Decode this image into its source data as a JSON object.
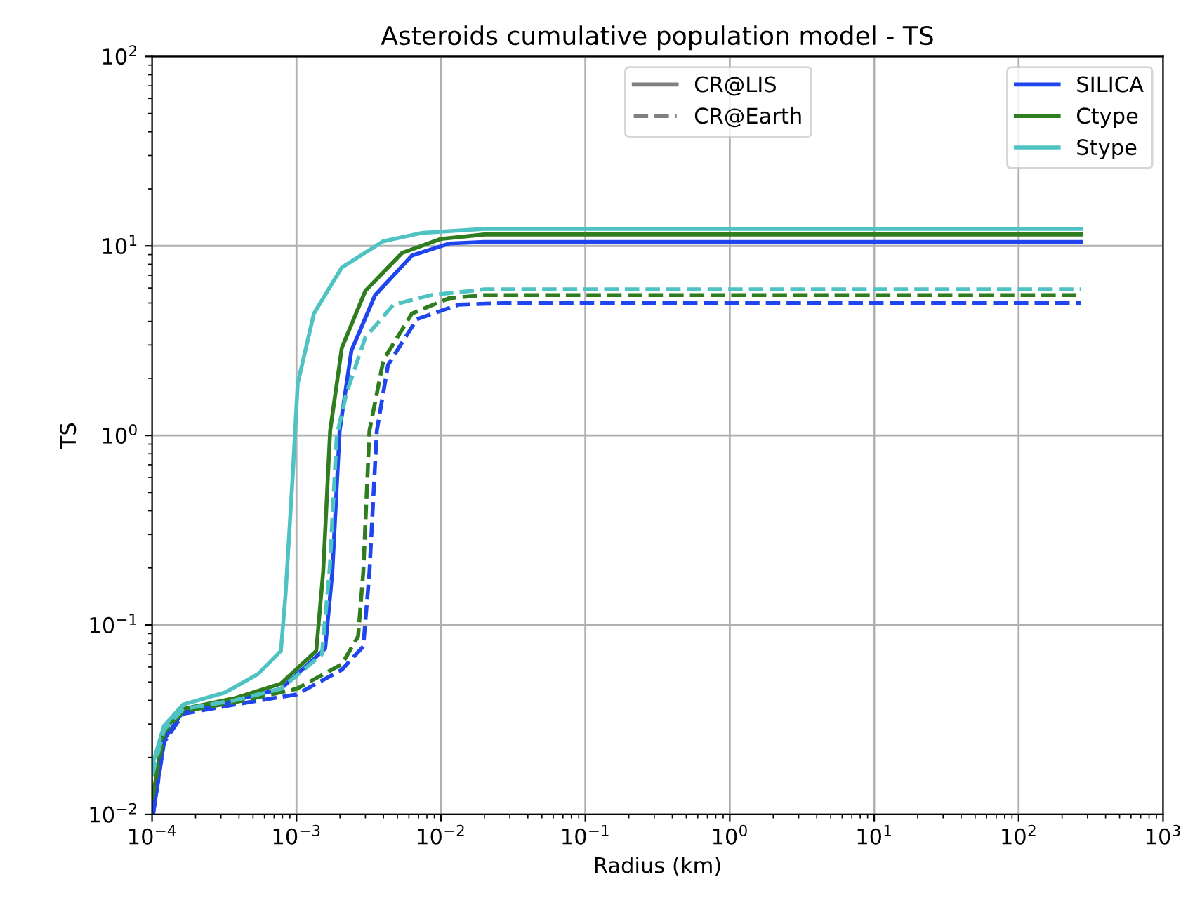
{
  "chart_data": {
    "type": "line",
    "title": "Asteroids cumulative population model - TS",
    "xlabel": "Radius (km)",
    "ylabel": "TS",
    "log": "xy",
    "grid": true,
    "legend": "top right",
    "marker": "none",
    "xlim": [
      0.0001,
      1000
    ],
    "ylim": [
      0.01,
      100
    ],
    "xticks": [
      {
        "value": 0.0001,
        "label": "10$^{−4}$"
      },
      {
        "value": 0.001,
        "label": "10$^{−3}$"
      },
      {
        "value": 0.01,
        "label": "10$^{−2}$"
      },
      {
        "value": 0.1,
        "label": "10$^{−1}$"
      },
      {
        "value": 1,
        "label": "10$^{0}$"
      },
      {
        "value": 10,
        "label": "10$^{1}$"
      },
      {
        "value": 100,
        "label": "10$^{2}$"
      },
      {
        "value": 1000,
        "label": "10$^{3}$"
      }
    ],
    "yticks": [
      {
        "value": 0.01,
        "label": "10$^{−2}$"
      },
      {
        "value": 0.1,
        "label": "10$^{−1}$"
      },
      {
        "value": 1,
        "label": "10$^{0}$"
      },
      {
        "value": 10,
        "label": "10$^{1}$"
      },
      {
        "value": 100,
        "label": "10$^{2}$"
      }
    ],
    "series": [
      {
        "name": "CR@LIS",
        "color": "#808080",
        "line_style": "solid"
      },
      {
        "name": "CR@Earth",
        "color": "#808080",
        "line_style": "dashed"
      },
      {
        "name": "SILICA",
        "color": "#1f45ee",
        "line_style": "solid",
        "x": [
          0.000102,
          0.000121,
          0.000164,
          0.00037,
          0.00078,
          0.00158,
          0.00177,
          0.00199,
          0.0024,
          0.0035,
          0.0063,
          0.0114,
          0.02,
          270
        ],
        "values": [
          0.0102,
          0.0248,
          0.035,
          0.04,
          0.046,
          0.075,
          0.19,
          1.06,
          2.8,
          5.5,
          8.9,
          10.3,
          10.5,
          10.5
        ]
      },
      {
        "name": "Ctype",
        "color": "#2f7d1e",
        "line_style": "solid",
        "x": [
          0.0001,
          0.000121,
          0.000164,
          0.00037,
          0.00078,
          0.00137,
          0.00153,
          0.00171,
          0.00206,
          0.003,
          0.0054,
          0.01,
          0.02,
          270
        ],
        "values": [
          0.0117,
          0.028,
          0.036,
          0.041,
          0.049,
          0.073,
          0.19,
          1.06,
          2.9,
          5.8,
          9.2,
          10.9,
          11.5,
          11.5
        ]
      },
      {
        "name": "Stype",
        "color": "#4fc3c3",
        "line_style": "solid",
        "x": [
          0.0001,
          0.000121,
          0.000164,
          0.00032,
          0.00054,
          0.00078,
          0.00084,
          0.00094,
          0.00102,
          0.00132,
          0.00206,
          0.004,
          0.0073,
          0.02,
          270
        ],
        "values": [
          0.018,
          0.0294,
          0.038,
          0.044,
          0.055,
          0.073,
          0.145,
          0.6,
          1.88,
          4.4,
          7.7,
          10.6,
          11.7,
          12.3,
          12.3
        ]
      },
      {
        "color": "#1f45ee",
        "line_style": "dashed",
        "x": [
          0.000102,
          0.000121,
          0.000164,
          0.00037,
          0.001,
          0.00206,
          0.0029,
          0.0032,
          0.0036,
          0.0043,
          0.0068,
          0.0133,
          0.03,
          270
        ],
        "values": [
          0.0102,
          0.024,
          0.034,
          0.038,
          0.043,
          0.058,
          0.077,
          0.19,
          1.06,
          2.35,
          4.1,
          4.9,
          5.0,
          5.0
        ]
      },
      {
        "color": "#2f7d1e",
        "line_style": "dashed",
        "x": [
          0.0001,
          0.000121,
          0.000164,
          0.00037,
          0.001,
          0.00206,
          0.00267,
          0.0029,
          0.0032,
          0.004,
          0.0063,
          0.0114,
          0.02,
          270
        ],
        "values": [
          0.012,
          0.027,
          0.035,
          0.039,
          0.046,
          0.062,
          0.087,
          0.19,
          1.06,
          2.5,
          4.4,
          5.3,
          5.5,
          5.5
        ]
      },
      {
        "color": "#4fc3c3",
        "line_style": "dashed",
        "x": [
          0.0001,
          0.000121,
          0.000164,
          0.00037,
          0.00078,
          0.0015,
          0.0017,
          0.0019,
          0.00222,
          0.003,
          0.0047,
          0.0085,
          0.02,
          270
        ],
        "values": [
          0.016,
          0.028,
          0.036,
          0.04,
          0.046,
          0.07,
          0.2,
          1.0,
          1.67,
          3.3,
          4.9,
          5.5,
          5.9,
          5.9
        ]
      }
    ]
  }
}
